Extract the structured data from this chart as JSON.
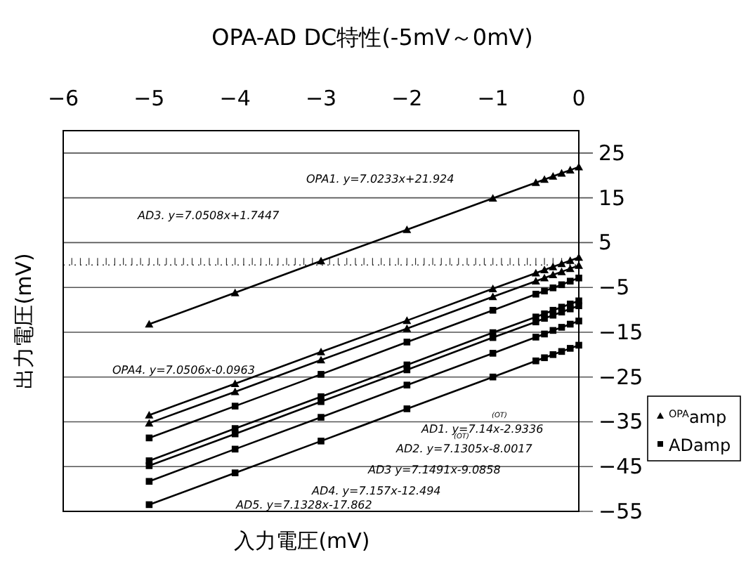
{
  "chart_data": {
    "type": "line",
    "title": "OPA-AD DC特性(-5mV～0mV)",
    "xlabel": "入力電圧(mV)",
    "ylabel": "出力電圧(mV)",
    "x": [
      -5,
      -4,
      -3,
      -2,
      -1,
      -0.5,
      -0.4,
      -0.3,
      -0.2,
      -0.1,
      0
    ],
    "series": [
      {
        "name": "$^{OPA}$amp",
        "color": "#000000",
        "marker": "triangle",
        "values": [
          -13.2,
          -6.2,
          0.9,
          7.9,
          14.9,
          18.4,
          19.1,
          19.8,
          20.5,
          21.2,
          21.9
        ]
      },
      {
        "color": "#000000",
        "marker": "triangle",
        "values": [
          -33.5,
          -26.5,
          -19.4,
          -12.4,
          -5.3,
          -1.8,
          -1.1,
          -0.4,
          0.3,
          1.0,
          1.7
        ]
      },
      {
        "color": "#000000",
        "marker": "triangle",
        "values": [
          -35.3,
          -28.3,
          -21.2,
          -14.2,
          -7.1,
          -3.6,
          -2.9,
          -2.2,
          -1.5,
          -0.8,
          -0.1
        ]
      },
      {
        "name": "ADamp",
        "color": "#000000",
        "marker": "square",
        "values": [
          -38.6,
          -31.5,
          -24.4,
          -17.2,
          -10.1,
          -6.5,
          -5.8,
          -5.1,
          -4.4,
          -3.6,
          -2.9
        ]
      },
      {
        "color": "#000000",
        "marker": "square",
        "values": [
          -43.7,
          -36.5,
          -29.4,
          -22.3,
          -15.1,
          -11.6,
          -10.9,
          -10.1,
          -9.4,
          -8.7,
          -8.0
        ]
      },
      {
        "color": "#000000",
        "marker": "square",
        "values": [
          -44.8,
          -37.7,
          -30.5,
          -23.4,
          -16.2,
          -12.7,
          -11.9,
          -11.2,
          -10.5,
          -9.8,
          -9.1
        ]
      },
      {
        "color": "#000000",
        "marker": "square",
        "values": [
          -48.3,
          -41.1,
          -34.0,
          -26.8,
          -19.7,
          -16.1,
          -15.4,
          -14.6,
          -13.9,
          -13.2,
          -12.5
        ]
      },
      {
        "color": "#000000",
        "marker": "square",
        "values": [
          -53.5,
          -46.4,
          -39.3,
          -32.1,
          -25.0,
          -21.4,
          -20.7,
          -20.0,
          -19.3,
          -18.6,
          -17.9
        ]
      }
    ],
    "xlim": [
      -6,
      0
    ],
    "xticks": [
      -6,
      -5,
      -4,
      -3,
      -2,
      -1,
      0
    ],
    "ylim": [
      -55,
      30
    ],
    "yticks": [
      25,
      15,
      5,
      -5,
      -15,
      -25,
      -35,
      -45,
      -55
    ],
    "grid": "y",
    "legend": "right",
    "line_style": "solid",
    "ref_lines": [
      {
        "axis": "y",
        "value": 0,
        "line_style": "dotted"
      }
    ],
    "annotations": [
      "OPA1. y=7.0233x+21.924",
      "AD3. y=7.0508x+1.7447",
      "OPA4. y=7.0506x-0.0963",
      "AD1. y=7.14x-2.9336",
      "AD2. y=7.1305x-8.0017",
      "AD3 y=7.1491x-9.0858",
      "AD4. y=7.157x-12.494",
      "AD5. y=7.1328x-17.862",
      "(OT)",
      "(OT)"
    ]
  }
}
